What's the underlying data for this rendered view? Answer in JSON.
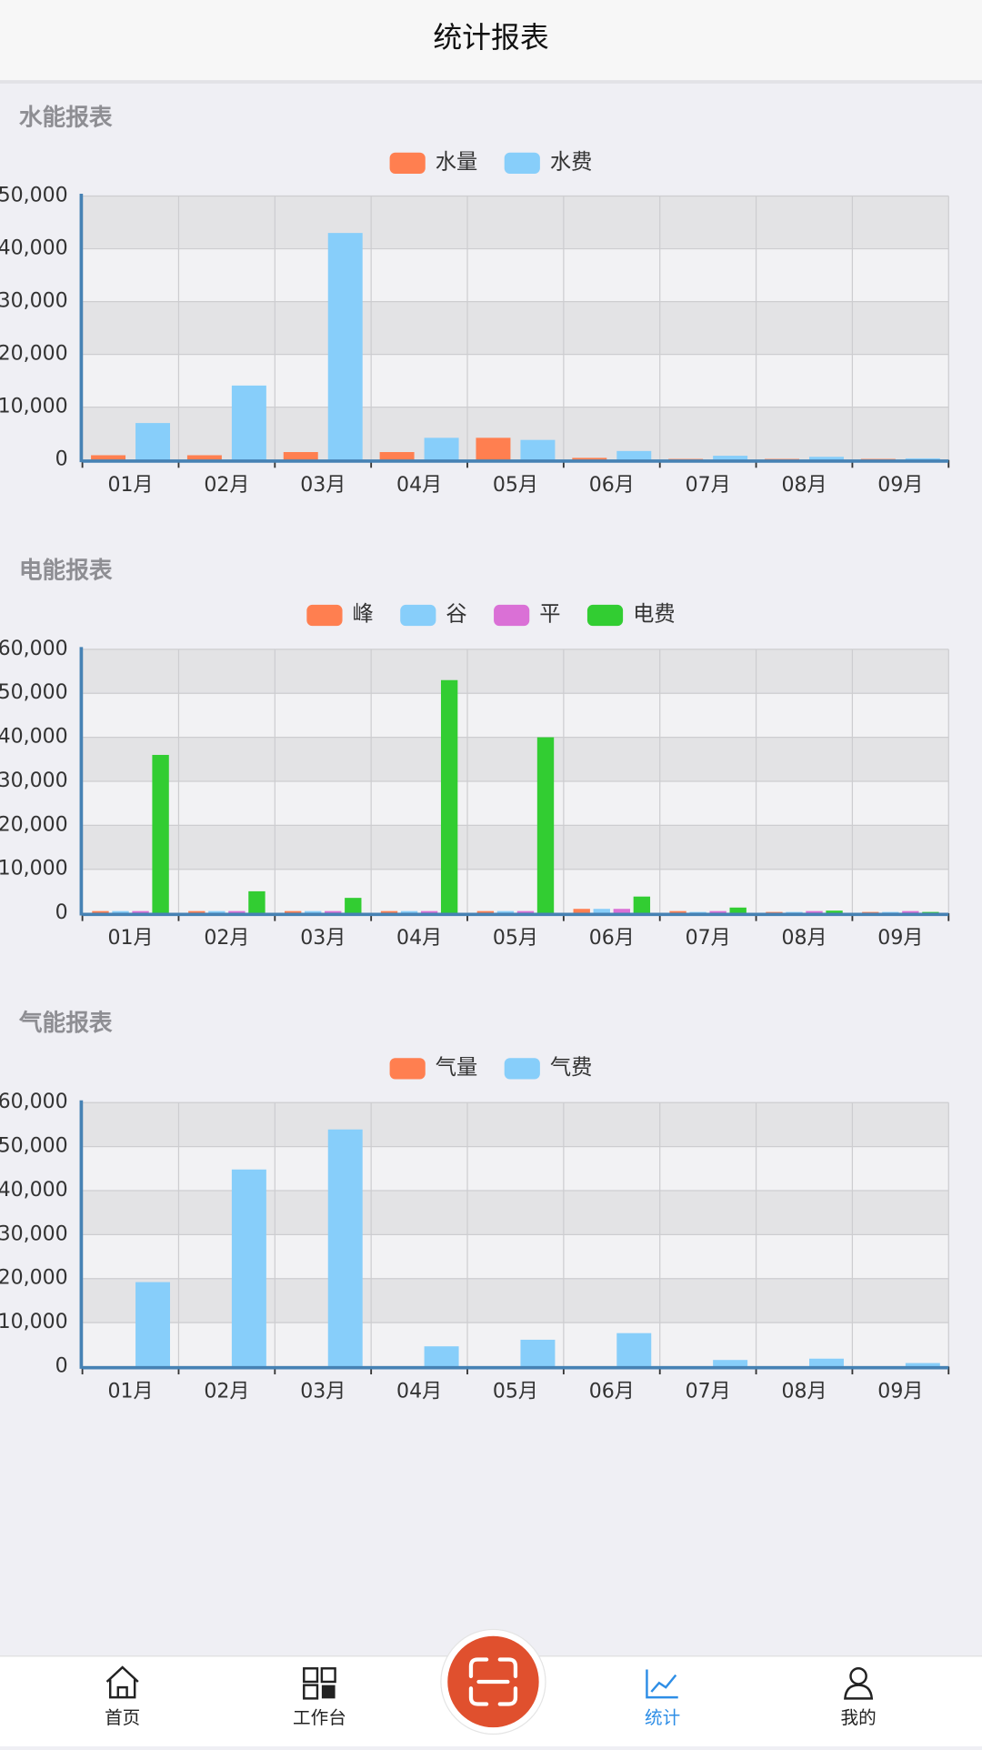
{
  "header": {
    "title": "统计报表"
  },
  "chart_data": [
    {
      "type": "bar",
      "title": "水能报表",
      "categories": [
        "01月",
        "02月",
        "03月",
        "04月",
        "05月",
        "06月",
        "07月",
        "08月",
        "09月"
      ],
      "series": [
        {
          "name": "水量",
          "color": "#ff7f50",
          "values": [
            900,
            900,
            1500,
            1500,
            4200,
            400,
            200,
            200,
            200
          ]
        },
        {
          "name": "水费",
          "color": "#87cefa",
          "values": [
            7000,
            14100,
            43000,
            4200,
            3800,
            1700,
            800,
            600,
            300
          ]
        }
      ],
      "ylim": [
        0,
        50000
      ],
      "yticks": [
        0,
        {
          "value": 10000,
          "label": "10,000"
        },
        {
          "value": 20000,
          "label": "20,000"
        },
        {
          "value": 30000,
          "label": "30,000"
        },
        {
          "value": 40000,
          "label": "40,000"
        },
        {
          "value": 50000,
          "label": "50,000"
        }
      ],
      "grid": true
    },
    {
      "type": "bar",
      "title": "电能报表",
      "categories": [
        "01月",
        "02月",
        "03月",
        "04月",
        "05月",
        "06月",
        "07月",
        "08月",
        "09月"
      ],
      "series": [
        {
          "name": "峰",
          "color": "#ff7f50",
          "values": [
            500,
            500,
            500,
            500,
            500,
            1000,
            500,
            300,
            300
          ]
        },
        {
          "name": "谷",
          "color": "#87cefa",
          "values": [
            500,
            500,
            500,
            500,
            500,
            1000,
            300,
            300,
            300
          ]
        },
        {
          "name": "平",
          "color": "#da70d6",
          "values": [
            500,
            500,
            500,
            500,
            500,
            1000,
            500,
            500,
            500
          ]
        },
        {
          "name": "电费",
          "color": "#32cd32",
          "values": [
            36000,
            5000,
            3500,
            53000,
            40000,
            3800,
            1300,
            600,
            300
          ]
        }
      ],
      "ylim": [
        0,
        60000
      ],
      "yticks": [
        0,
        {
          "value": 10000,
          "label": "10,000"
        },
        {
          "value": 20000,
          "label": "20,000"
        },
        {
          "value": 30000,
          "label": "30,000"
        },
        {
          "value": 40000,
          "label": "40,000"
        },
        {
          "value": 50000,
          "label": "50,000"
        },
        {
          "value": 60000,
          "label": "60,000"
        }
      ],
      "grid": true
    },
    {
      "type": "bar",
      "title": "气能报表",
      "categories": [
        "01月",
        "02月",
        "03月",
        "04月",
        "05月",
        "06月",
        "07月",
        "08月",
        "09月"
      ],
      "series": [
        {
          "name": "气量",
          "color": "#ff7f50",
          "values": [
            0,
            0,
            0,
            0,
            0,
            0,
            0,
            0,
            0
          ]
        },
        {
          "name": "气费",
          "color": "#87cefa",
          "values": [
            19200,
            44800,
            53900,
            4600,
            6100,
            7600,
            1500,
            1800,
            800
          ]
        }
      ],
      "ylim": [
        0,
        60000
      ],
      "yticks": [
        0,
        {
          "value": 10000,
          "label": "10,000"
        },
        {
          "value": 20000,
          "label": "20,000"
        },
        {
          "value": 30000,
          "label": "30,000"
        },
        {
          "value": 40000,
          "label": "40,000"
        },
        {
          "value": 50000,
          "label": "50,000"
        },
        {
          "value": 60000,
          "label": "60,000"
        }
      ],
      "grid": true
    }
  ],
  "nav": {
    "items": [
      "首页",
      "工作台",
      "统计",
      "我的"
    ]
  }
}
